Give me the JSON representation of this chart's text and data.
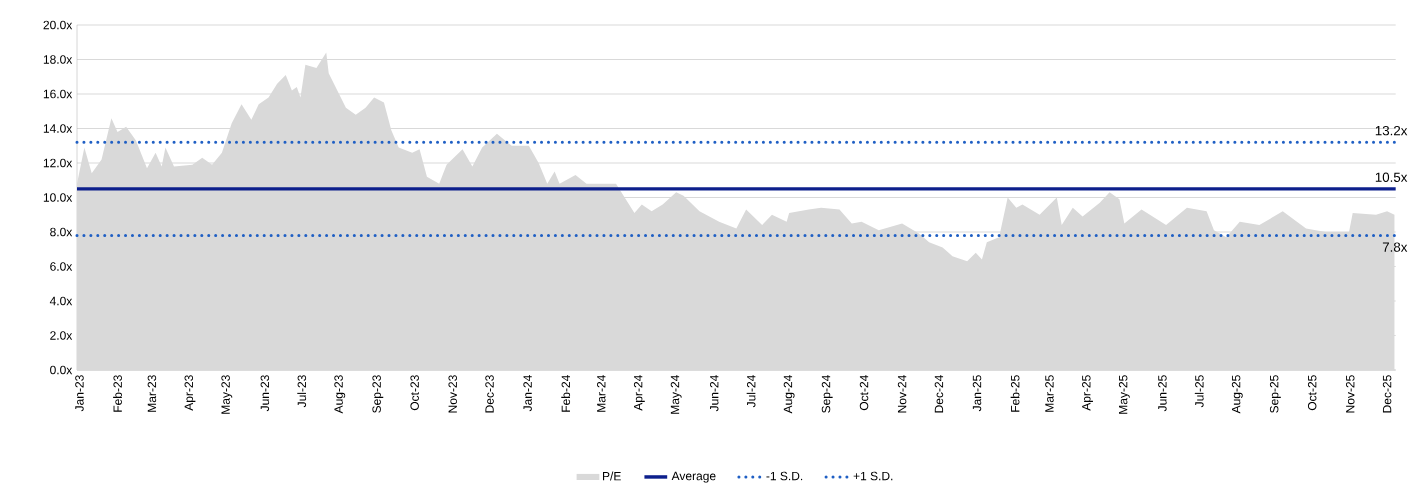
{
  "chart_data": {
    "type": "area",
    "ylim": [
      0,
      20
    ],
    "xlim": [
      "2022-12-30",
      "2025-12-08"
    ],
    "yticks": [
      {
        "value": 0,
        "label": "0.0x"
      },
      {
        "value": 2,
        "label": "2.0x"
      },
      {
        "value": 4,
        "label": "4.0x"
      },
      {
        "value": 6,
        "label": "6.0x"
      },
      {
        "value": 8,
        "label": "8.0x"
      },
      {
        "value": 10,
        "label": "10.0x"
      },
      {
        "value": 12,
        "label": "12.0x"
      },
      {
        "value": 14,
        "label": "14.0x"
      },
      {
        "value": 16,
        "label": "16.0x"
      },
      {
        "value": 18,
        "label": "18.0x"
      },
      {
        "value": 20,
        "label": "20.0x"
      }
    ],
    "xticks": [
      {
        "value": "2023-01-01",
        "label": "Jan-23"
      },
      {
        "value": "2023-02-01",
        "label": "Feb-23"
      },
      {
        "value": "2023-03-01",
        "label": "Mar-23"
      },
      {
        "value": "2023-04-01",
        "label": "Apr-23"
      },
      {
        "value": "2023-05-01",
        "label": "May-23"
      },
      {
        "value": "2023-06-01",
        "label": "Jun-23"
      },
      {
        "value": "2023-07-01",
        "label": "Jul-23"
      },
      {
        "value": "2023-08-01",
        "label": "Aug-23"
      },
      {
        "value": "2023-09-01",
        "label": "Sep-23"
      },
      {
        "value": "2023-10-01",
        "label": "Oct-23"
      },
      {
        "value": "2023-11-01",
        "label": "Nov-23"
      },
      {
        "value": "2023-12-01",
        "label": "Dec-23"
      },
      {
        "value": "2024-01-01",
        "label": "Jan-24"
      },
      {
        "value": "2024-02-01",
        "label": "Feb-24"
      },
      {
        "value": "2024-03-01",
        "label": "Mar-24"
      },
      {
        "value": "2024-04-01",
        "label": "Apr-24"
      },
      {
        "value": "2024-05-01",
        "label": "May-24"
      },
      {
        "value": "2024-06-01",
        "label": "Jun-24"
      },
      {
        "value": "2024-07-01",
        "label": "Jul-24"
      },
      {
        "value": "2024-08-01",
        "label": "Aug-24"
      },
      {
        "value": "2024-09-01",
        "label": "Sep-24"
      },
      {
        "value": "2024-10-01",
        "label": "Oct-24"
      },
      {
        "value": "2024-11-01",
        "label": "Nov-24"
      },
      {
        "value": "2024-12-01",
        "label": "Dec-24"
      },
      {
        "value": "2025-01-01",
        "label": "Jan-25"
      },
      {
        "value": "2025-02-01",
        "label": "Feb-25"
      },
      {
        "value": "2025-03-01",
        "label": "Mar-25"
      },
      {
        "value": "2025-04-01",
        "label": "Apr-25"
      },
      {
        "value": "2025-05-01",
        "label": "May-25"
      },
      {
        "value": "2025-06-01",
        "label": "Jun-25"
      },
      {
        "value": "2025-07-01",
        "label": "Jul-25"
      },
      {
        "value": "2025-08-01",
        "label": "Aug-25"
      },
      {
        "value": "2025-09-01",
        "label": "Sep-25"
      },
      {
        "value": "2025-10-01",
        "label": "Oct-25"
      },
      {
        "value": "2025-11-01",
        "label": "Nov-25"
      },
      {
        "value": "2025-12-01",
        "label": "Dec-25"
      }
    ],
    "grid": "y",
    "legend": "bottom",
    "series": [
      {
        "name": "P/E",
        "color": "#d9d9d9",
        "x": [
          "2022-12-30",
          "2023-01-05",
          "2023-01-11",
          "2023-01-19",
          "2023-01-27",
          "2023-02-01",
          "2023-02-08",
          "2023-02-16",
          "2023-02-25",
          "2023-03-04",
          "2023-03-09",
          "2023-03-12",
          "2023-03-19",
          "2023-04-03",
          "2023-04-11",
          "2023-04-19",
          "2023-04-27",
          "2023-05-05",
          "2023-05-13",
          "2023-05-21",
          "2023-05-27",
          "2023-06-04",
          "2023-06-11",
          "2023-06-18",
          "2023-06-23",
          "2023-06-27",
          "2023-06-30",
          "2023-07-04",
          "2023-07-13",
          "2023-07-21",
          "2023-07-23",
          "2023-07-30",
          "2023-08-06",
          "2023-08-14",
          "2023-08-22",
          "2023-08-29",
          "2023-09-06",
          "2023-09-12",
          "2023-09-18",
          "2023-09-29",
          "2023-10-05",
          "2023-10-11",
          "2023-10-21",
          "2023-10-27",
          "2023-11-09",
          "2023-11-17",
          "2023-11-25",
          "2023-12-07",
          "2023-12-19",
          "2024-01-02",
          "2024-01-10",
          "2024-01-17",
          "2024-01-23",
          "2024-01-27",
          "2024-02-09",
          "2024-02-18",
          "2024-03-13",
          "2024-03-28",
          "2024-04-03",
          "2024-04-11",
          "2024-04-20",
          "2024-05-01",
          "2024-05-07",
          "2024-05-20",
          "2024-06-05",
          "2024-06-19",
          "2024-06-27",
          "2024-07-10",
          "2024-07-18",
          "2024-07-30",
          "2024-08-01",
          "2024-08-17",
          "2024-08-27",
          "2024-09-11",
          "2024-09-21",
          "2024-09-29",
          "2024-10-13",
          "2024-11-01",
          "2024-11-15",
          "2024-11-23",
          "2024-12-04",
          "2024-12-12",
          "2024-12-24",
          "2024-12-31",
          "2025-01-05",
          "2025-01-09",
          "2025-01-19",
          "2025-01-26",
          "2025-02-02",
          "2025-02-07",
          "2025-02-21",
          "2025-03-07",
          "2025-03-11",
          "2025-03-20",
          "2025-03-28",
          "2025-04-11",
          "2025-04-19",
          "2025-04-27",
          "2025-05-01",
          "2025-05-15",
          "2025-06-04",
          "2025-06-21",
          "2025-07-07",
          "2025-07-13",
          "2025-07-23",
          "2025-08-03",
          "2025-08-19",
          "2025-09-07",
          "2025-09-26",
          "2025-10-12",
          "2025-10-31",
          "2025-11-03",
          "2025-11-22",
          "2025-12-01",
          "2025-12-07"
        ],
        "values": [
          10.8,
          12.9,
          11.4,
          12.2,
          14.6,
          13.8,
          14.1,
          13.3,
          11.7,
          12.6,
          11.8,
          12.9,
          11.8,
          11.9,
          12.3,
          11.9,
          12.6,
          14.3,
          15.4,
          14.5,
          15.4,
          15.8,
          16.6,
          17.1,
          16.2,
          16.4,
          15.8,
          17.7,
          17.5,
          18.4,
          17.2,
          16.2,
          15.2,
          14.8,
          15.2,
          15.8,
          15.5,
          13.9,
          12.9,
          12.6,
          12.8,
          11.2,
          10.8,
          11.9,
          12.8,
          11.8,
          12.9,
          13.7,
          13.0,
          13.0,
          12.0,
          10.8,
          11.5,
          10.8,
          11.3,
          10.8,
          10.8,
          9.1,
          9.6,
          9.2,
          9.6,
          10.3,
          10.1,
          9.2,
          8.6,
          8.2,
          9.3,
          8.4,
          9.0,
          8.6,
          9.1,
          9.3,
          9.4,
          9.3,
          8.5,
          8.6,
          8.1,
          8.5,
          7.9,
          7.4,
          7.1,
          6.6,
          6.3,
          6.8,
          6.4,
          7.4,
          7.7,
          10.0,
          9.4,
          9.6,
          9.0,
          10.0,
          8.4,
          9.4,
          8.9,
          9.7,
          10.3,
          9.9,
          8.5,
          9.3,
          8.4,
          9.4,
          9.2,
          8.1,
          7.7,
          8.6,
          8.4,
          9.2,
          8.2,
          8.0,
          8.0,
          9.1,
          9.0,
          9.2,
          9.0
        ]
      },
      {
        "name": "Average",
        "type": "line",
        "color": "#0d1f8c",
        "line_style": "solid",
        "x": [
          "2022-12-30",
          "2025-12-08"
        ],
        "values": [
          10.5,
          10.5
        ]
      },
      {
        "name": "-1 S.D.",
        "type": "line",
        "color": "#1f5fc4",
        "line_style": "dotted",
        "x": [
          "2022-12-30",
          "2025-12-08"
        ],
        "values": [
          7.8,
          7.8
        ]
      },
      {
        "name": "+1 S.D.",
        "type": "line",
        "color": "#1f5fc4",
        "line_style": "dotted",
        "x": [
          "2022-12-30",
          "2025-12-08"
        ],
        "values": [
          13.2,
          13.2
        ]
      }
    ],
    "annotations": [
      {
        "text": "13.2x",
        "x": "2025-12-08",
        "y": 13.2
      },
      {
        "text": "10.5x",
        "x": "2025-12-08",
        "y": 10.5
      },
      {
        "text": "7.8x",
        "x": "2025-12-08",
        "y": 7.8
      }
    ]
  }
}
